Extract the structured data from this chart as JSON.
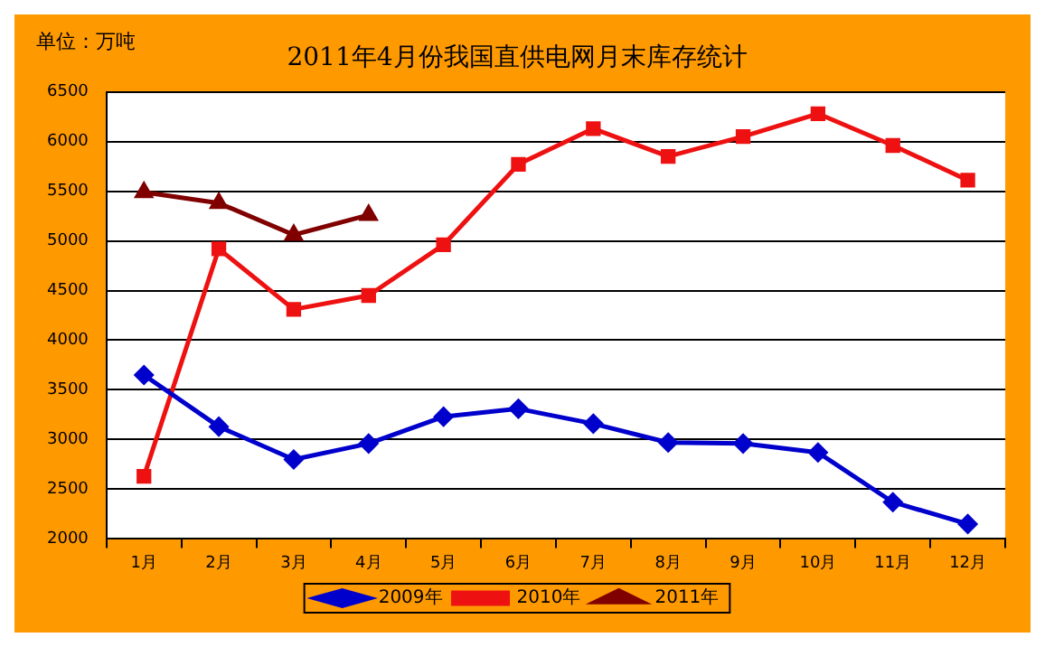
{
  "chart_data": {
    "type": "line",
    "title": "2011年4月份我国直供电网月末库存统计",
    "annotations": [
      "单位：万吨"
    ],
    "categories": [
      "1月",
      "2月",
      "3月",
      "4月",
      "5月",
      "6月",
      "7月",
      "8月",
      "9月",
      "10月",
      "11月",
      "12月"
    ],
    "series": [
      {
        "name": "2009年",
        "color": "#0000cc",
        "marker": "diamond",
        "values": [
          3650,
          3130,
          2800,
          2960,
          3230,
          3310,
          3160,
          2970,
          2960,
          2870,
          2370,
          2150
        ]
      },
      {
        "name": "2010年",
        "color": "#ee1111",
        "marker": "square",
        "values": [
          2630,
          4920,
          4310,
          4450,
          4960,
          5770,
          6130,
          5850,
          6050,
          6280,
          5960,
          5610
        ]
      },
      {
        "name": "2011年",
        "color": "#800000",
        "marker": "triangle",
        "values": [
          5490,
          5380,
          5060,
          5260,
          null,
          null,
          null,
          null,
          null,
          null,
          null,
          null
        ]
      }
    ],
    "ylim": [
      2000,
      6500
    ],
    "yticks": [
      2000,
      2500,
      3000,
      3500,
      4000,
      4500,
      5000,
      5500,
      6000,
      6500
    ],
    "grid": "y",
    "legend": "bottom"
  }
}
